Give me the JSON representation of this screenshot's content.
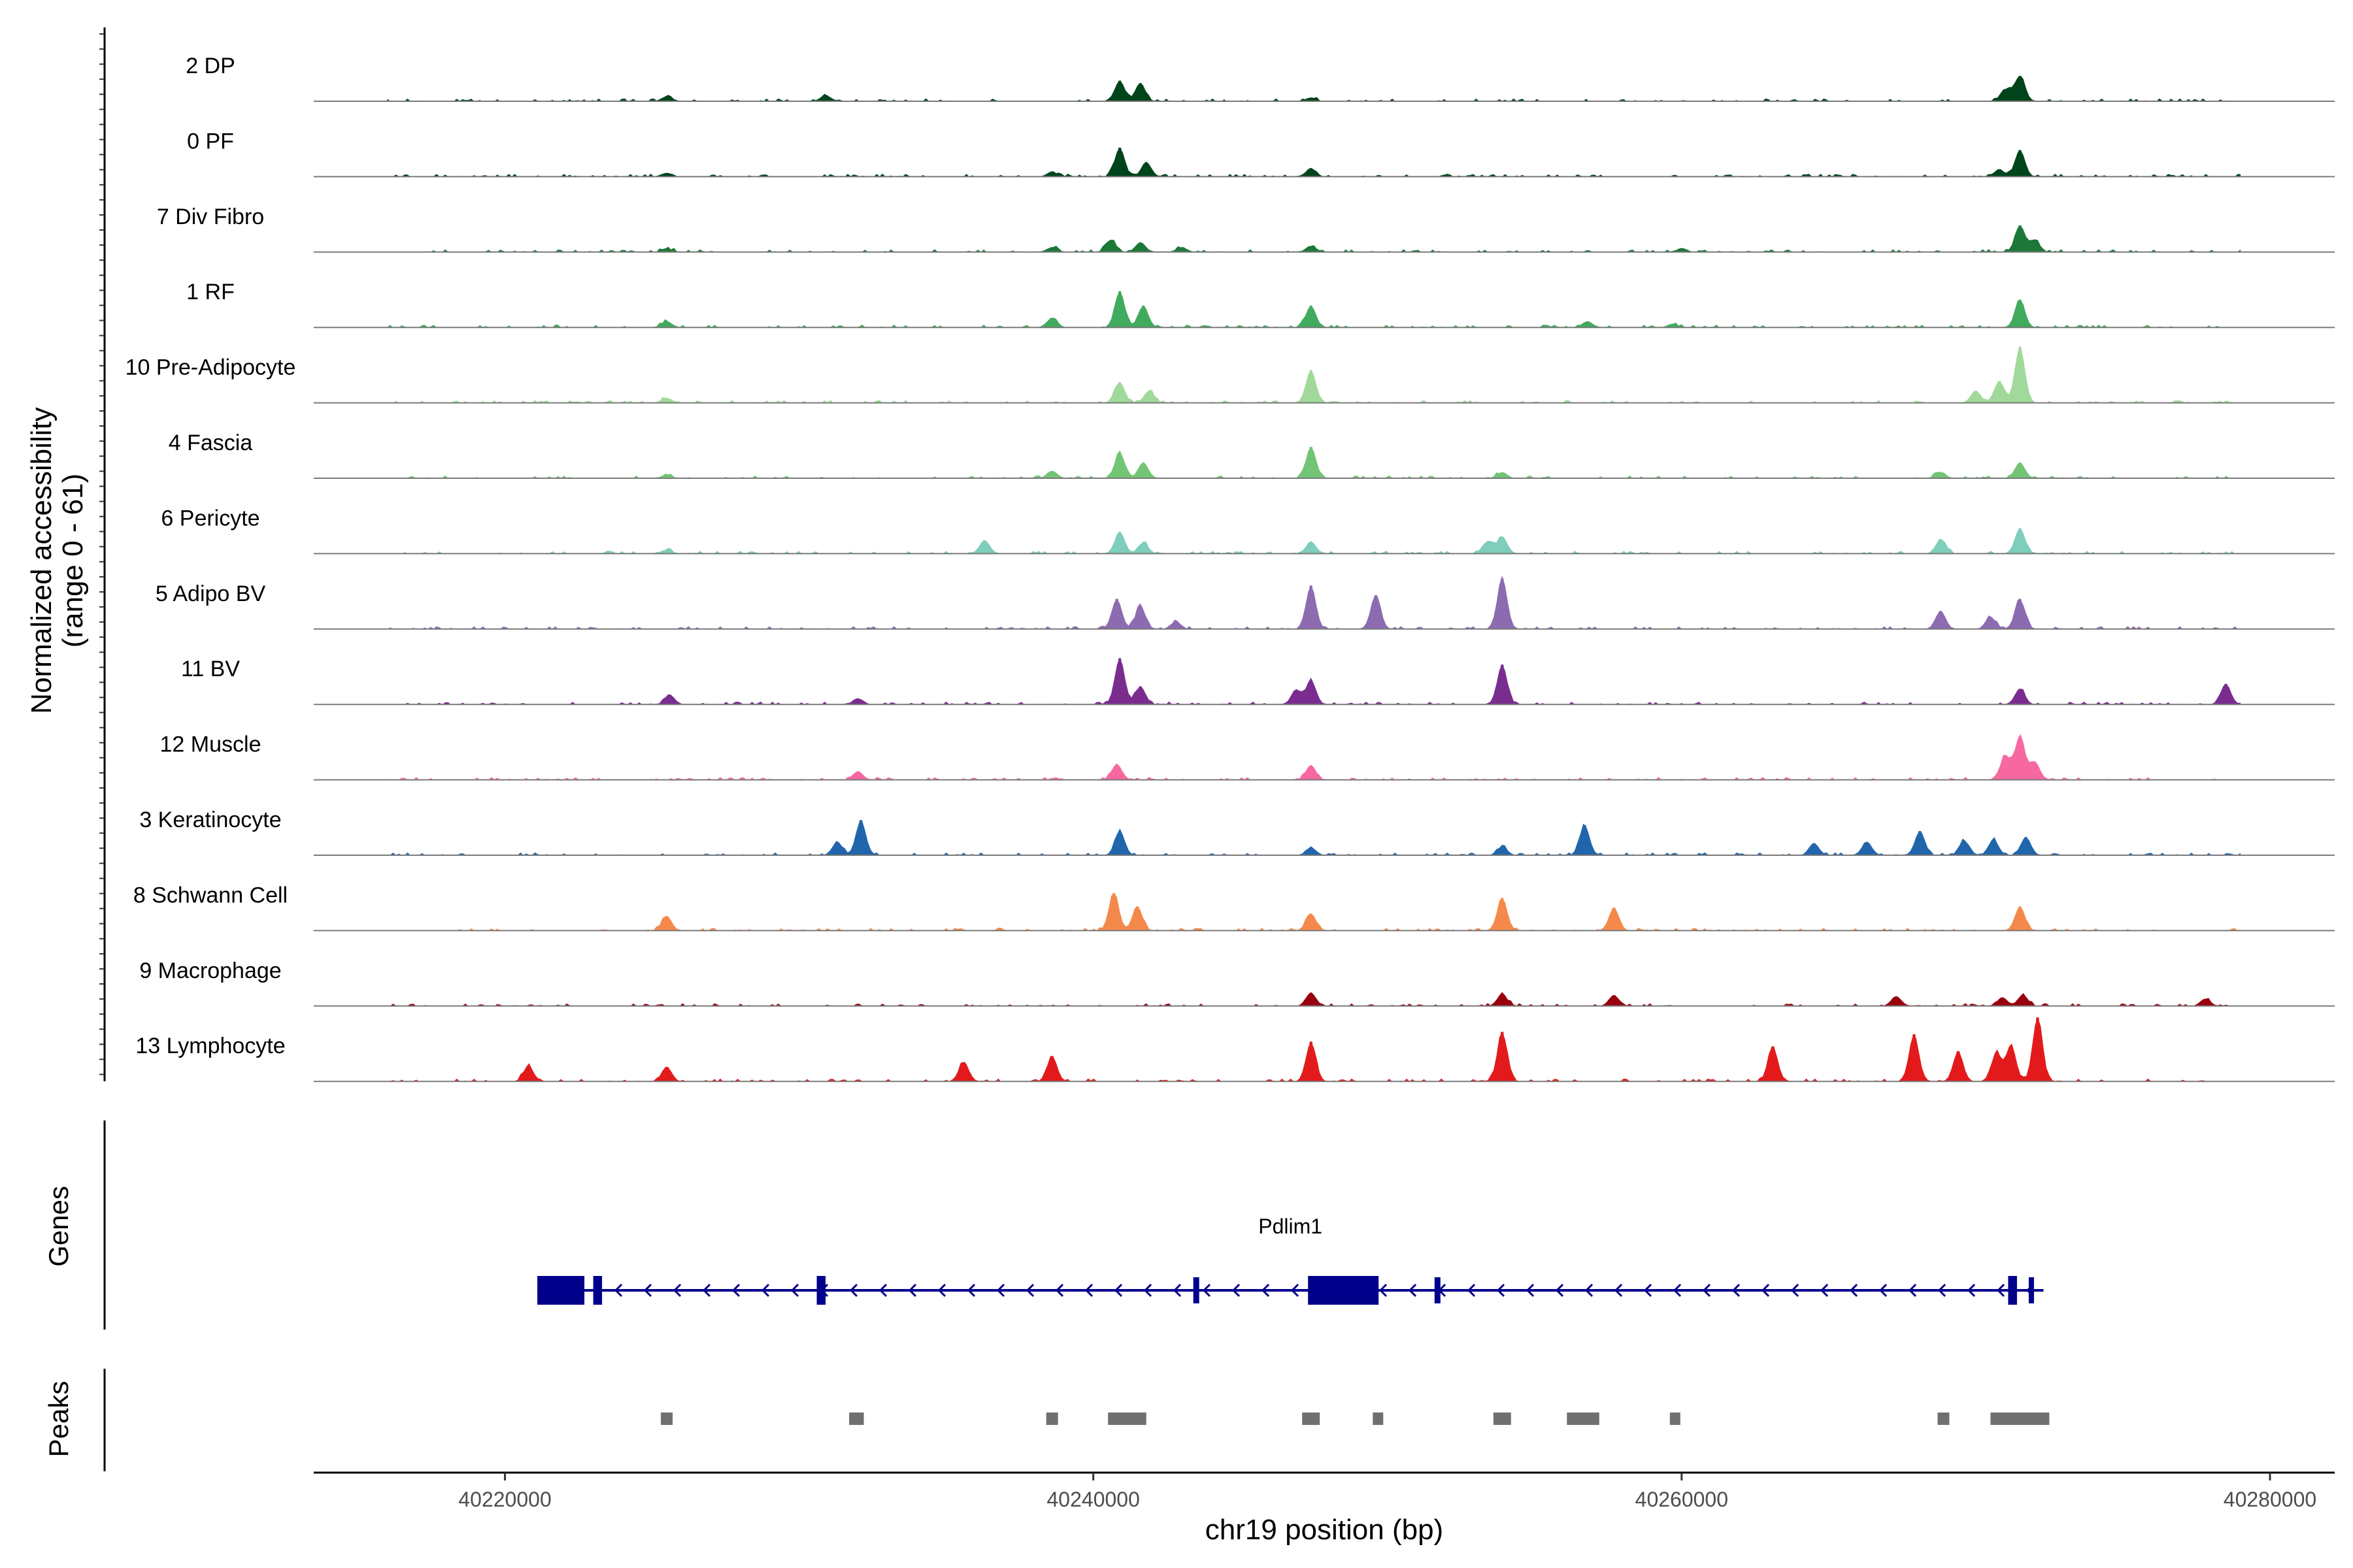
{
  "chart_data": {
    "type": "area",
    "title": "",
    "chromosome": "chr19",
    "xlabel": "chr19 position (bp)",
    "ylabel_line1": "Normalized accessibility",
    "ylabel_line2": "(range 0 - 61)",
    "y_range": [
      0,
      61
    ],
    "xlim": [
      40213500,
      40282200
    ],
    "data_span": [
      40216000,
      40279000
    ],
    "x_ticks": [
      {
        "value": 40220000,
        "label": "40220000"
      },
      {
        "value": 40240000,
        "label": "40240000"
      },
      {
        "value": 40260000,
        "label": "40260000"
      },
      {
        "value": 40280000,
        "label": "40280000"
      }
    ],
    "grid": false,
    "peak_center_positions_bp": [
      40225500,
      40232000,
      40238600,
      40241000,
      40247400,
      40249600,
      40253900,
      40256800,
      40259700,
      40268800,
      40271500
    ],
    "tracks": [
      {
        "name": "2 DP",
        "color": "#00441B",
        "peaks": [
          [
            40225500,
            4
          ],
          [
            40230900,
            5
          ],
          [
            40240900,
            17
          ],
          [
            40241600,
            15
          ],
          [
            40247400,
            3
          ],
          [
            40271500,
            21
          ],
          [
            40271000,
            10
          ]
        ]
      },
      {
        "name": "0 PF",
        "color": "#00441B",
        "peaks": [
          [
            40225500,
            3
          ],
          [
            40238600,
            4
          ],
          [
            40240900,
            24
          ],
          [
            40241800,
            12
          ],
          [
            40247400,
            7
          ],
          [
            40271500,
            22
          ],
          [
            40270800,
            6
          ]
        ]
      },
      {
        "name": "7 Div Fibro",
        "color": "#1B7837",
        "peaks": [
          [
            40225500,
            3
          ],
          [
            40238600,
            4
          ],
          [
            40240600,
            10
          ],
          [
            40241600,
            8
          ],
          [
            40243000,
            4
          ],
          [
            40247400,
            5
          ],
          [
            40271500,
            22
          ],
          [
            40272000,
            10
          ],
          [
            40260000,
            3
          ]
        ]
      },
      {
        "name": "1 RF",
        "color": "#41AB5D",
        "peaks": [
          [
            40225500,
            5
          ],
          [
            40238600,
            8
          ],
          [
            40240900,
            30
          ],
          [
            40241700,
            18
          ],
          [
            40247400,
            18
          ],
          [
            40256800,
            5
          ],
          [
            40259700,
            3
          ],
          [
            40271500,
            23
          ]
        ]
      },
      {
        "name": "10 Pre-Adipocyte",
        "color": "#A1D99B",
        "peaks": [
          [
            40225500,
            4
          ],
          [
            40240900,
            17
          ],
          [
            40241900,
            10
          ],
          [
            40247400,
            27
          ],
          [
            40270000,
            10
          ],
          [
            40271500,
            46
          ],
          [
            40270800,
            18
          ]
        ]
      },
      {
        "name": "4 Fascia",
        "color": "#74C476",
        "peaks": [
          [
            40225500,
            3
          ],
          [
            40238600,
            6
          ],
          [
            40240900,
            21
          ],
          [
            40241700,
            13
          ],
          [
            40247400,
            26
          ],
          [
            40253900,
            5
          ],
          [
            40268800,
            5
          ],
          [
            40271500,
            13
          ]
        ]
      },
      {
        "name": "6 Pericyte",
        "color": "#7FCDBB",
        "peaks": [
          [
            40225500,
            3
          ],
          [
            40236300,
            11
          ],
          [
            40240900,
            18
          ],
          [
            40241700,
            9
          ],
          [
            40247400,
            10
          ],
          [
            40253400,
            10
          ],
          [
            40253900,
            14
          ],
          [
            40268800,
            11
          ],
          [
            40271500,
            21
          ]
        ]
      },
      {
        "name": "5 Adipo BV",
        "color": "#8C6BB1",
        "peaks": [
          [
            40240800,
            25
          ],
          [
            40241600,
            19
          ],
          [
            40242800,
            6
          ],
          [
            40247400,
            36
          ],
          [
            40249600,
            28
          ],
          [
            40253900,
            42
          ],
          [
            40268800,
            15
          ],
          [
            40271500,
            25
          ],
          [
            40270500,
            10
          ]
        ]
      },
      {
        "name": "11 BV",
        "color": "#7A2D8E",
        "peaks": [
          [
            40225600,
            8
          ],
          [
            40232000,
            5
          ],
          [
            40240900,
            38
          ],
          [
            40241600,
            15
          ],
          [
            40247400,
            20
          ],
          [
            40246900,
            12
          ],
          [
            40253900,
            33
          ],
          [
            40271500,
            13
          ],
          [
            40278500,
            17
          ]
        ]
      },
      {
        "name": "12 Muscle",
        "color": "#F768A1",
        "peaks": [
          [
            40232000,
            7
          ],
          [
            40240800,
            13
          ],
          [
            40247400,
            12
          ],
          [
            40271000,
            20
          ],
          [
            40271500,
            36
          ],
          [
            40272000,
            15
          ]
        ]
      },
      {
        "name": "3 Keratinocyte",
        "color": "#2166AC",
        "peaks": [
          [
            40231300,
            11
          ],
          [
            40232100,
            29
          ],
          [
            40240900,
            20
          ],
          [
            40247400,
            6
          ],
          [
            40253900,
            7
          ],
          [
            40256700,
            25
          ],
          [
            40264500,
            10
          ],
          [
            40266300,
            11
          ],
          [
            40268100,
            20
          ],
          [
            40269600,
            12
          ],
          [
            40270600,
            13
          ],
          [
            40271700,
            15
          ]
        ]
      },
      {
        "name": "8 Schwann Cell",
        "color": "#F4894B",
        "peaks": [
          [
            40225500,
            12
          ],
          [
            40240700,
            31
          ],
          [
            40241500,
            20
          ],
          [
            40247400,
            14
          ],
          [
            40253900,
            27
          ],
          [
            40257700,
            19
          ],
          [
            40271500,
            20
          ]
        ]
      },
      {
        "name": "9 Macrophage",
        "color": "#99000D",
        "peaks": [
          [
            40247400,
            11
          ],
          [
            40253900,
            10
          ],
          [
            40257700,
            9
          ],
          [
            40267300,
            8
          ],
          [
            40270900,
            7
          ],
          [
            40271600,
            9
          ],
          [
            40277800,
            6
          ]
        ]
      },
      {
        "name": "13 Lymphocyte",
        "color": "#E31A1C",
        "peaks": [
          [
            40220800,
            13
          ],
          [
            40225500,
            12
          ],
          [
            40235600,
            16
          ],
          [
            40238600,
            21
          ],
          [
            40247400,
            33
          ],
          [
            40253900,
            41
          ],
          [
            40263100,
            29
          ],
          [
            40267900,
            39
          ],
          [
            40269400,
            25
          ],
          [
            40270700,
            24
          ],
          [
            40272100,
            53
          ],
          [
            40271200,
            30
          ]
        ]
      }
    ],
    "genes_panel_label": "Genes",
    "gene": {
      "name": "Pdlim1",
      "strand": "-",
      "color": "#00008B",
      "start": 40221100,
      "end": 40272300,
      "exons": [
        [
          40221100,
          40222700,
          "thick"
        ],
        [
          40223000,
          40223300,
          "thick"
        ],
        [
          40230600,
          40230900,
          "thick"
        ],
        [
          40243400,
          40243600,
          "thin"
        ],
        [
          40247300,
          40249700,
          "thick"
        ],
        [
          40251600,
          40251800,
          "thin"
        ],
        [
          40271100,
          40271400,
          "thick"
        ],
        [
          40271800,
          40271900,
          "thin"
        ]
      ]
    },
    "peaks_panel_label": "Peaks",
    "peak_color": "#707070",
    "peak_regions": [
      [
        40225300,
        40225700
      ],
      [
        40231700,
        40232200
      ],
      [
        40238400,
        40238800
      ],
      [
        40240500,
        40241800
      ],
      [
        40247100,
        40247700
      ],
      [
        40249500,
        40249800
      ],
      [
        40253600,
        40254200
      ],
      [
        40256100,
        40257200
      ],
      [
        40259600,
        40259900
      ],
      [
        40268700,
        40269100
      ],
      [
        40270500,
        40272500
      ]
    ]
  }
}
